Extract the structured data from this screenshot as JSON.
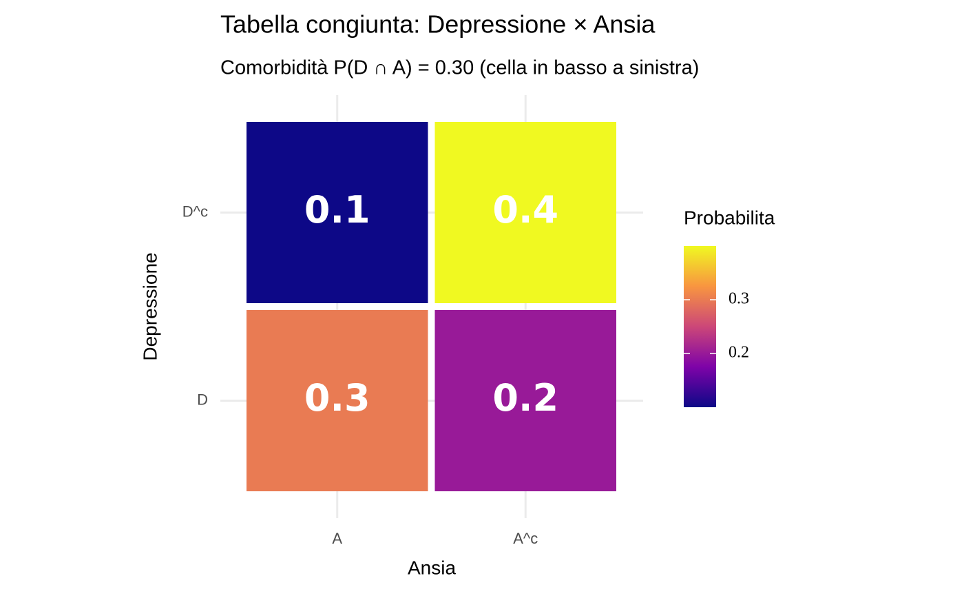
{
  "chart_data": {
    "type": "heatmap",
    "title": "Tabella congiunta: Depressione × Ansia",
    "subtitle": "Comorbidità P(D ∩ A) = 0.30 (cella in basso a sinistra)",
    "x_label": "Ansia",
    "y_label": "Depressione",
    "x_categories": [
      "A",
      "A^c"
    ],
    "y_categories": [
      "D",
      "D^c"
    ],
    "values": [
      [
        0.3,
        0.2
      ],
      [
        0.1,
        0.4
      ]
    ],
    "colorbar": {
      "title": "Probabilita",
      "lim": [
        0.1,
        0.4
      ],
      "ticks": [
        0.2,
        0.3
      ],
      "colors": [
        "#0d0887",
        "#7e03a8",
        "#cc4778",
        "#f89540",
        "#f0f921"
      ]
    },
    "grid": true
  }
}
